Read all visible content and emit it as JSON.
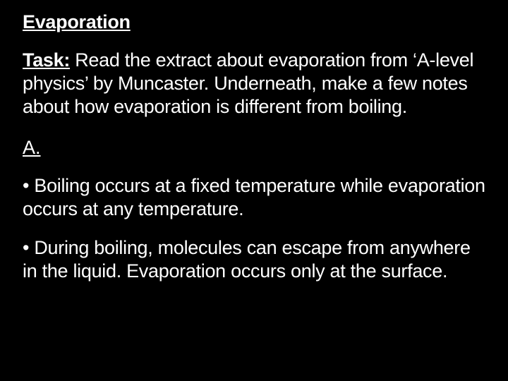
{
  "heading": "Evaporation",
  "task_label": "Task:",
  "task_text": " Read the extract about evaporation from ‘A-level physics’ by Muncaster.  Underneath, make a few notes about how evaporation is different from boiling.",
  "answer_label": "A.",
  "bullets": [
    "• Boiling occurs at a fixed temperature while evaporation occurs at any temperature.",
    "• During boiling, molecules can escape from anywhere in the liquid.  Evaporation occurs only at the surface."
  ],
  "colors": {
    "background": "#000000",
    "text": "#ffffff"
  },
  "typography": {
    "font_family": "Arial",
    "heading_fontsize": 27,
    "body_fontsize": 27,
    "heading_weight": "bold",
    "body_weight": "normal"
  }
}
